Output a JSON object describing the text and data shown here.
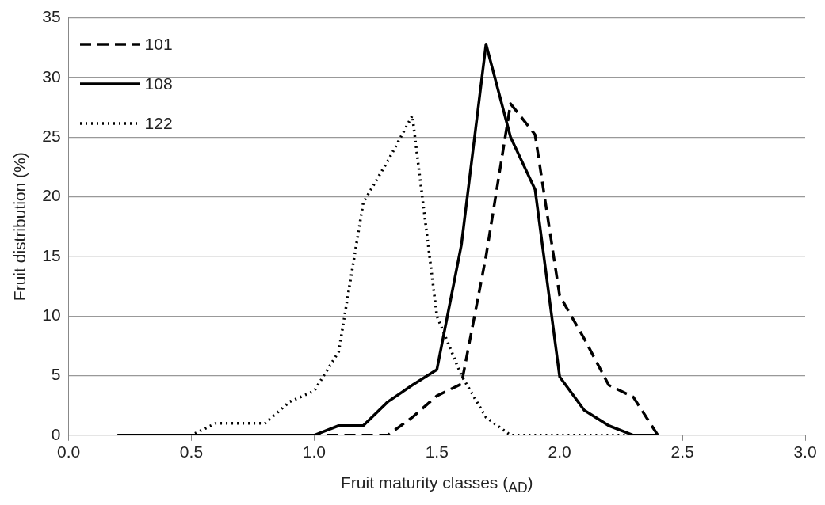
{
  "chart_data": {
    "type": "line",
    "xlabel": "Fruit  maturity classes ($_{AD}$)",
    "ylabel": "Fruit distribution (%)",
    "x": [
      0.2,
      0.3,
      0.4,
      0.5,
      0.6,
      0.7,
      0.8,
      0.9,
      1.0,
      1.1,
      1.2,
      1.3,
      1.4,
      1.5,
      1.6,
      1.7,
      1.8,
      1.9,
      2.0,
      2.1,
      2.2,
      2.3,
      2.4
    ],
    "series": [
      {
        "name": "101",
        "color": "#000000",
        "line_style": "dashed",
        "values": [
          0,
          0,
          0,
          0,
          0,
          0,
          0,
          0,
          0,
          0,
          0,
          0,
          1.5,
          3.3,
          4.3,
          15,
          27.8,
          25.2,
          11.7,
          8.1,
          4.2,
          3.2,
          0
        ]
      },
      {
        "name": "108",
        "color": "#000000",
        "line_style": "solid",
        "values": [
          0,
          0,
          0,
          0,
          0,
          0,
          0,
          0,
          0,
          0.8,
          0.8,
          2.8,
          4.2,
          5.5,
          16,
          32.8,
          25,
          20.6,
          4.9,
          2.1,
          0.8,
          0,
          0
        ]
      },
      {
        "name": "122",
        "color": "#000000",
        "line_style": "dotted",
        "values": [
          0,
          0,
          0,
          0,
          1,
          1,
          1,
          2.8,
          3.7,
          7,
          19.5,
          23,
          26.8,
          10,
          5,
          1.5,
          0,
          0,
          0,
          0,
          0,
          0,
          null
        ]
      }
    ],
    "xlim": [
      0,
      3
    ],
    "xticks": [
      {
        "value": 0,
        "label": "0.0"
      },
      0.5,
      {
        "value": 1,
        "label": "1.0"
      },
      1.5,
      {
        "value": 2,
        "label": "2.0"
      },
      2.5,
      {
        "value": 3,
        "label": "3.0"
      }
    ],
    "ylim": [
      0,
      35
    ],
    "yticks": [
      0,
      5,
      10,
      15,
      20,
      25,
      30,
      35
    ],
    "grid": "y",
    "legend": "top left",
    "marker": "none"
  }
}
